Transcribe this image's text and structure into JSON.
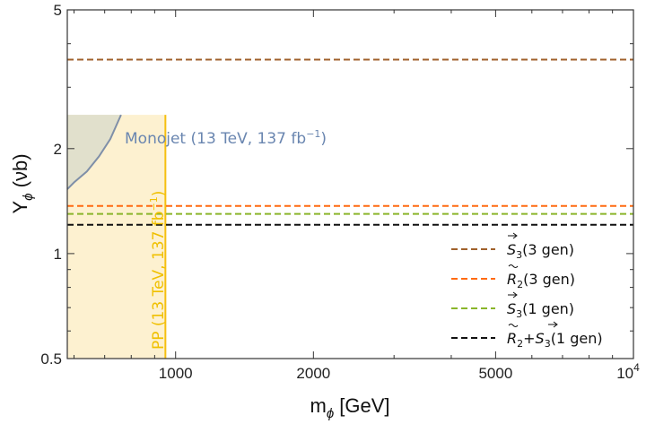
{
  "chart_data": {
    "type": "line",
    "xscale": "log",
    "yscale": "log",
    "xlim": [
      580,
      10000
    ],
    "ylim": [
      0.5,
      5
    ],
    "xlabel": "m",
    "xlabel_sub": "ϕ",
    "xlabel_unit": "[GeV]",
    "ylabel": "Y",
    "ylabel_sub": "ϕ",
    "ylabel_unit": "(νb)",
    "x_ticks": [
      {
        "value": 1000,
        "label": "1000"
      },
      {
        "value": 2000,
        "label": "2000"
      },
      {
        "value": 5000,
        "label": "5000"
      },
      {
        "value": 10000,
        "label": "10",
        "sup": "4"
      }
    ],
    "y_ticks": [
      {
        "value": 0.5,
        "label": "0.5"
      },
      {
        "value": 1,
        "label": "1"
      },
      {
        "value": 2,
        "label": "2"
      },
      {
        "value": 5,
        "label": "5"
      }
    ],
    "series": [
      {
        "name": "S3 (3 gen)",
        "color": "#a0612c",
        "y": 3.6
      },
      {
        "name": "R2 (3 gen)",
        "color": "#ff6a10",
        "y": 1.37
      },
      {
        "name": "S3 (1 gen)",
        "color": "#8ab52a",
        "y": 1.3
      },
      {
        "name": "R2+S3 (1 gen)",
        "color": "#111111",
        "y": 1.21
      }
    ],
    "legend": [
      {
        "sym": "S",
        "sub": "3",
        "vec": true,
        "text": "(3 gen)",
        "color": "#a0612c"
      },
      {
        "sym": "R",
        "sub": "2",
        "tilde": true,
        "text": "(3 gen)",
        "color": "#ff6a10"
      },
      {
        "sym": "S",
        "sub": "3",
        "vec": true,
        "text": "(1 gen)",
        "color": "#8ab52a"
      },
      {
        "sym": "R",
        "sub": "2",
        "tilde": true,
        "plus": "S",
        "plus_sub": "3",
        "plus_vec": true,
        "text": "(1 gen)",
        "color": "#111111"
      }
    ],
    "legend_position": "bottom-right",
    "excluded_regions": [
      {
        "name": "PP (13 TeV, 137 fb-1)",
        "label": "PP (13 TeV, 137 fb",
        "label_sup": "−1",
        "label_close": ")",
        "x_max": 950,
        "y_max": 2.5,
        "fill": "#fdf1d0",
        "line": "#f5bf10",
        "label_color": "#f0c000"
      },
      {
        "name": "Monojet (13 TeV, 137 fb-1)",
        "label": "Monojet (13 TeV, 137 fb",
        "label_sup": "−1",
        "label_close": ")",
        "boundary": [
          [
            580,
            1.53
          ],
          [
            600,
            1.6
          ],
          [
            640,
            1.72
          ],
          [
            680,
            1.9
          ],
          [
            720,
            2.13
          ],
          [
            760,
            2.5
          ]
        ],
        "fill": "#e1e0cc",
        "line": "#7f8fa8",
        "label_color": "#6a86b0"
      }
    ]
  }
}
